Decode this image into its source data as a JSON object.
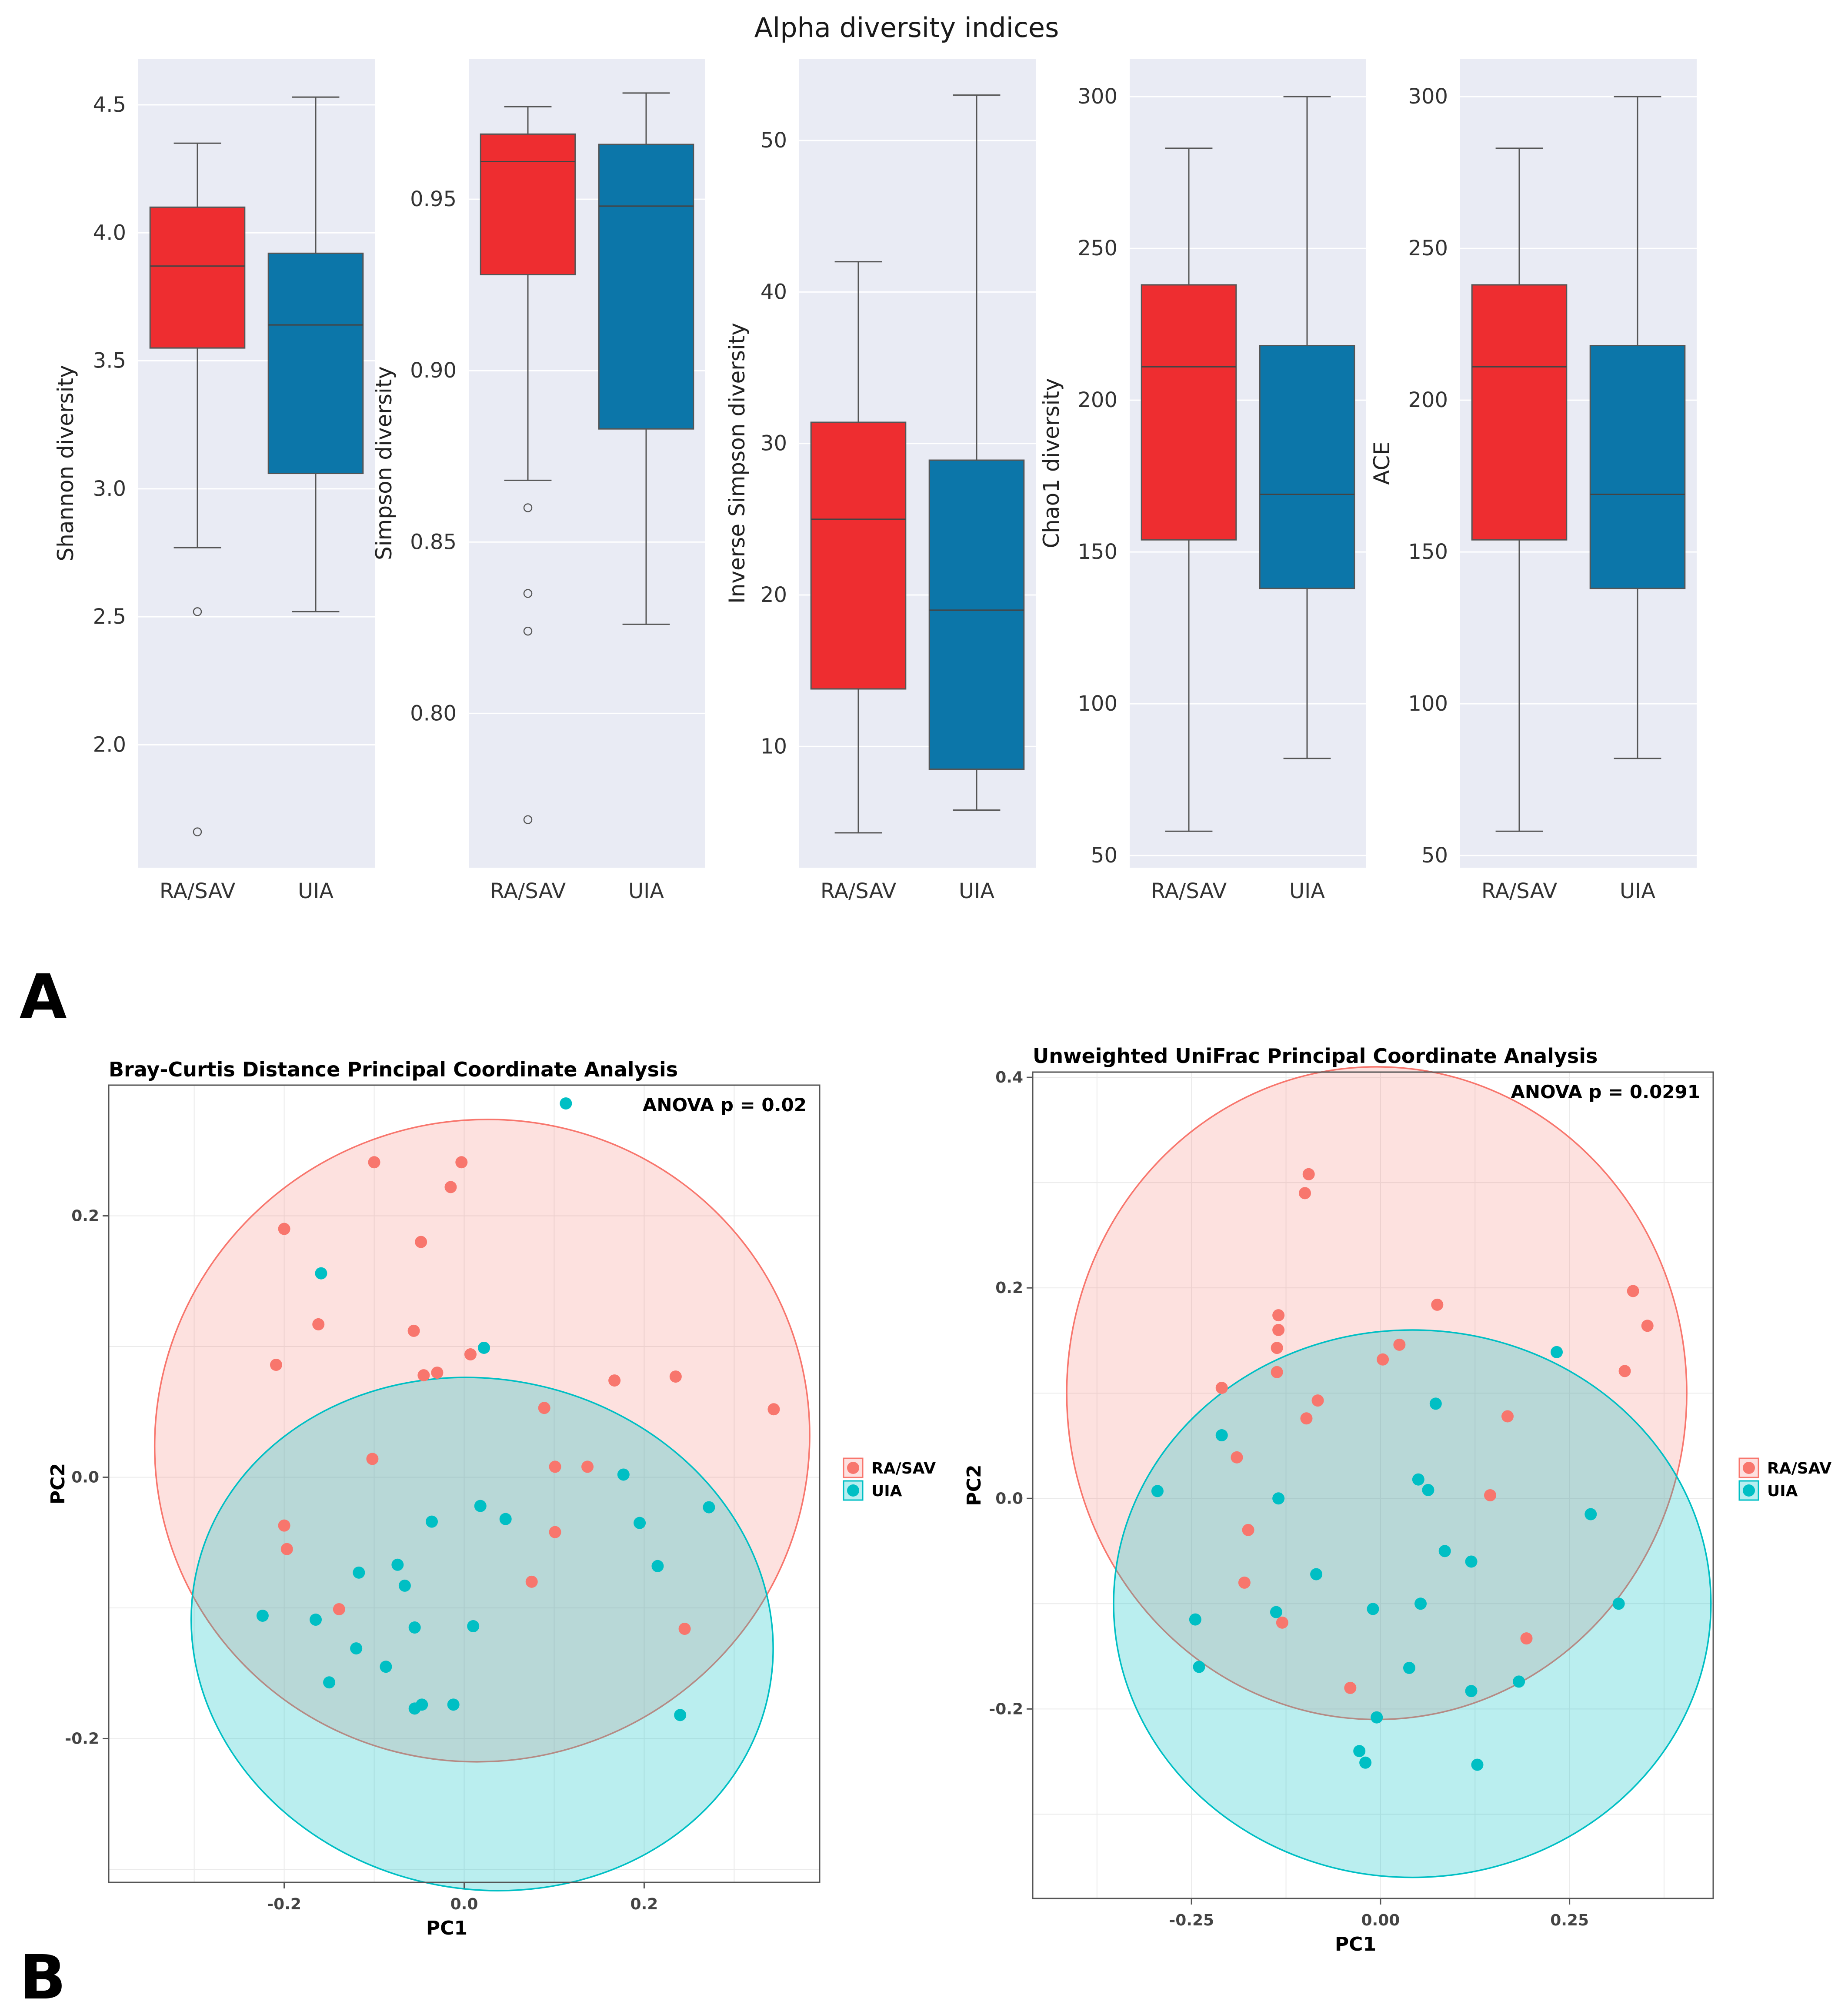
{
  "colors": {
    "ra_box": "#ee2d30",
    "uia_box": "#0c76a9",
    "panel_bg": "#e9ebf4",
    "grid": "#ffffff",
    "ra_point": "#f8766d",
    "uia_point": "#00bfc4",
    "ra_fill": "#fde1e0",
    "uia_fill": "#b8eef0"
  },
  "panel_labels": {
    "a": "A",
    "b": "B"
  },
  "chart_data": [
    {
      "id": "shannon",
      "type": "box",
      "suptitle": "Alpha diversity indices",
      "ylabel": "Shannon diversity",
      "categories": [
        "RA/SAV",
        "UIA"
      ],
      "ylim": [
        1.52,
        4.68
      ],
      "yticks": [
        2.0,
        2.5,
        3.0,
        3.5,
        4.0,
        4.5
      ],
      "tick_labels": [
        "2.0",
        "2.5",
        "3.0",
        "3.5",
        "4.0",
        "4.5"
      ],
      "boxes": [
        {
          "group": "RA/SAV",
          "whisker_low": 2.77,
          "q1": 3.55,
          "median": 3.87,
          "q3": 4.1,
          "whisker_high": 4.35,
          "outliers": [
            2.52,
            1.66
          ]
        },
        {
          "group": "UIA",
          "whisker_low": 2.52,
          "q1": 3.06,
          "median": 3.64,
          "q3": 3.92,
          "whisker_high": 4.53,
          "outliers": []
        }
      ]
    },
    {
      "id": "simpson",
      "type": "box",
      "ylabel": "Simpson diversity",
      "categories": [
        "RA/SAV",
        "UIA"
      ],
      "ylim": [
        0.755,
        0.991
      ],
      "yticks": [
        0.8,
        0.85,
        0.9,
        0.95
      ],
      "tick_labels": [
        "0.80",
        "0.85",
        "0.90",
        "0.95"
      ],
      "boxes": [
        {
          "group": "RA/SAV",
          "whisker_low": 0.868,
          "q1": 0.928,
          "median": 0.961,
          "q3": 0.969,
          "whisker_high": 0.977,
          "outliers": [
            0.86,
            0.835,
            0.824,
            0.769
          ]
        },
        {
          "group": "UIA",
          "whisker_low": 0.826,
          "q1": 0.883,
          "median": 0.948,
          "q3": 0.966,
          "whisker_high": 0.981,
          "outliers": []
        }
      ]
    },
    {
      "id": "inv_simpson",
      "type": "box",
      "ylabel": "Inverse Simpson diversity",
      "categories": [
        "RA/SAV",
        "UIA"
      ],
      "ylim": [
        2.0,
        55.4
      ],
      "yticks": [
        10,
        20,
        30,
        40,
        50
      ],
      "tick_labels": [
        "10",
        "20",
        "30",
        "40",
        "50"
      ],
      "boxes": [
        {
          "group": "RA/SAV",
          "whisker_low": 4.3,
          "q1": 13.8,
          "median": 25.0,
          "q3": 31.4,
          "whisker_high": 42.0,
          "outliers": []
        },
        {
          "group": "UIA",
          "whisker_low": 5.8,
          "q1": 8.5,
          "median": 19.0,
          "q3": 28.9,
          "whisker_high": 53.0,
          "outliers": []
        }
      ]
    },
    {
      "id": "chao1",
      "type": "box",
      "ylabel": "Chao1 diversity",
      "categories": [
        "RA/SAV",
        "UIA"
      ],
      "ylim": [
        46.0,
        312.5
      ],
      "yticks": [
        50,
        100,
        150,
        200,
        250,
        300
      ],
      "tick_labels": [
        "50",
        "100",
        "150",
        "200",
        "250",
        "300"
      ],
      "boxes": [
        {
          "group": "RA/SAV",
          "whisker_low": 58,
          "q1": 154,
          "median": 211,
          "q3": 238,
          "whisker_high": 283,
          "outliers": []
        },
        {
          "group": "UIA",
          "whisker_low": 82,
          "q1": 138,
          "median": 169,
          "q3": 218,
          "whisker_high": 300,
          "outliers": []
        }
      ]
    },
    {
      "id": "ace",
      "type": "box",
      "ylabel": "ACE",
      "categories": [
        "RA/SAV",
        "UIA"
      ],
      "ylim": [
        46.0,
        312.5
      ],
      "yticks": [
        50,
        100,
        150,
        200,
        250,
        300
      ],
      "tick_labels": [
        "50",
        "100",
        "150",
        "200",
        "250",
        "300"
      ],
      "boxes": [
        {
          "group": "RA/SAV",
          "whisker_low": 58,
          "q1": 154,
          "median": 211,
          "q3": 238,
          "whisker_high": 283,
          "outliers": []
        },
        {
          "group": "UIA",
          "whisker_low": 82,
          "q1": 138,
          "median": 169,
          "q3": 218,
          "whisker_high": 300,
          "outliers": []
        }
      ]
    },
    {
      "id": "bray",
      "type": "scatter",
      "title": "Bray-Curtis Distance Principal Coordinate Analysis",
      "annotation": "ANOVA p = 0.02",
      "xlabel": "PC1",
      "ylabel": "PC2",
      "xlim": [
        -0.395,
        0.395
      ],
      "ylim": [
        -0.31,
        0.3
      ],
      "xticks": [
        -0.2,
        0.0,
        0.2
      ],
      "xtick_labels": [
        "-0.2",
        "0.0",
        "0.2"
      ],
      "yticks": [
        -0.2,
        0.0,
        0.2
      ],
      "ytick_labels": [
        "-0.2",
        "0.0",
        "0.2"
      ],
      "legend": [
        "RA/SAV",
        "UIA"
      ],
      "ellipses": [
        {
          "group": "RA/SAV",
          "cx": 0.02,
          "cy": 0.028,
          "rx": 0.365,
          "ry": 0.245,
          "angle_deg": -20
        },
        {
          "group": "UIA",
          "cx": 0.02,
          "cy": -0.12,
          "rx": 0.325,
          "ry": 0.195,
          "angle_deg": 12
        }
      ],
      "series": [
        {
          "name": "RA/SAV",
          "points": [
            [
              -0.1,
              0.241
            ],
            [
              -0.003,
              0.241
            ],
            [
              -0.015,
              0.222
            ],
            [
              -0.2,
              0.19
            ],
            [
              -0.048,
              0.18
            ],
            [
              -0.162,
              0.117
            ],
            [
              -0.056,
              0.112
            ],
            [
              -0.209,
              0.086
            ],
            [
              0.007,
              0.094
            ],
            [
              -0.045,
              0.078
            ],
            [
              -0.03,
              0.08
            ],
            [
              0.167,
              0.074
            ],
            [
              0.235,
              0.077
            ],
            [
              0.089,
              0.053
            ],
            [
              0.344,
              0.052
            ],
            [
              -0.102,
              0.014
            ],
            [
              0.101,
              0.008
            ],
            [
              0.137,
              0.008
            ],
            [
              -0.2,
              -0.037
            ],
            [
              -0.197,
              -0.055
            ],
            [
              0.101,
              -0.042
            ],
            [
              0.075,
              -0.08
            ],
            [
              -0.139,
              -0.101
            ],
            [
              0.245,
              -0.116
            ]
          ]
        },
        {
          "name": "UIA",
          "points": [
            [
              0.113,
              0.286
            ],
            [
              -0.159,
              0.156
            ],
            [
              0.022,
              0.099
            ],
            [
              0.177,
              0.002
            ],
            [
              0.272,
              -0.023
            ],
            [
              0.018,
              -0.022
            ],
            [
              -0.036,
              -0.034
            ],
            [
              0.046,
              -0.032
            ],
            [
              0.195,
              -0.035
            ],
            [
              0.215,
              -0.068
            ],
            [
              -0.074,
              -0.067
            ],
            [
              -0.117,
              -0.073
            ],
            [
              -0.066,
              -0.083
            ],
            [
              -0.224,
              -0.106
            ],
            [
              -0.165,
              -0.109
            ],
            [
              -0.055,
              -0.115
            ],
            [
              0.01,
              -0.114
            ],
            [
              -0.12,
              -0.131
            ],
            [
              -0.087,
              -0.145
            ],
            [
              -0.15,
              -0.157
            ],
            [
              -0.047,
              -0.174
            ],
            [
              -0.055,
              -0.177
            ],
            [
              -0.012,
              -0.174
            ],
            [
              0.24,
              -0.182
            ]
          ]
        }
      ]
    },
    {
      "id": "unifrac",
      "type": "scatter",
      "title": "Unweighted UniFrac Principal Coordinate Analysis",
      "annotation": "ANOVA p = 0.0291",
      "xlabel": "PC1",
      "ylabel": "PC2",
      "xlim": [
        -0.46,
        0.44
      ],
      "ylim": [
        -0.38,
        0.405
      ],
      "xticks": [
        -0.25,
        0.0,
        0.25
      ],
      "xtick_labels": [
        "-0.25",
        "0.00",
        "0.25"
      ],
      "yticks": [
        -0.2,
        0.0,
        0.2,
        0.4
      ],
      "ytick_labels": [
        "-0.2",
        "0.0",
        "0.2",
        "0.4"
      ],
      "legend": [
        "RA/SAV",
        "UIA"
      ],
      "ellipses": [
        {
          "group": "RA/SAV",
          "cx": -0.005,
          "cy": 0.1,
          "rx": 0.41,
          "ry": 0.31,
          "angle_deg": 0
        },
        {
          "group": "UIA",
          "cx": 0.042,
          "cy": -0.1,
          "rx": 0.395,
          "ry": 0.26,
          "angle_deg": 0
        }
      ],
      "series": [
        {
          "name": "RA/SAV",
          "points": [
            [
              -0.095,
              0.308
            ],
            [
              -0.1,
              0.29
            ],
            [
              0.334,
              0.197
            ],
            [
              0.075,
              0.184
            ],
            [
              -0.135,
              0.174
            ],
            [
              -0.135,
              0.16
            ],
            [
              0.353,
              0.164
            ],
            [
              -0.137,
              0.143
            ],
            [
              0.025,
              0.146
            ],
            [
              0.003,
              0.132
            ],
            [
              -0.137,
              0.12
            ],
            [
              0.323,
              0.121
            ],
            [
              -0.21,
              0.105
            ],
            [
              -0.083,
              0.093
            ],
            [
              -0.098,
              0.076
            ],
            [
              0.168,
              0.078
            ],
            [
              -0.19,
              0.039
            ],
            [
              0.145,
              0.003
            ],
            [
              -0.175,
              -0.03
            ],
            [
              -0.18,
              -0.08
            ],
            [
              -0.13,
              -0.118
            ],
            [
              -0.04,
              -0.18
            ],
            [
              0.193,
              -0.133
            ]
          ]
        },
        {
          "name": "UIA",
          "points": [
            [
              0.233,
              0.139
            ],
            [
              0.073,
              0.09
            ],
            [
              -0.21,
              0.06
            ],
            [
              0.05,
              0.018
            ],
            [
              0.063,
              0.008
            ],
            [
              -0.295,
              0.007
            ],
            [
              -0.135,
              0.0
            ],
            [
              0.278,
              -0.015
            ],
            [
              0.085,
              -0.05
            ],
            [
              -0.085,
              -0.072
            ],
            [
              0.12,
              -0.06
            ],
            [
              -0.01,
              -0.105
            ],
            [
              0.053,
              -0.1
            ],
            [
              -0.138,
              -0.108
            ],
            [
              0.315,
              -0.1
            ],
            [
              -0.245,
              -0.115
            ],
            [
              -0.24,
              -0.16
            ],
            [
              0.038,
              -0.161
            ],
            [
              0.183,
              -0.174
            ],
            [
              0.12,
              -0.183
            ],
            [
              -0.005,
              -0.208
            ],
            [
              -0.028,
              -0.24
            ],
            [
              -0.02,
              -0.251
            ],
            [
              0.128,
              -0.253
            ]
          ]
        }
      ]
    }
  ]
}
